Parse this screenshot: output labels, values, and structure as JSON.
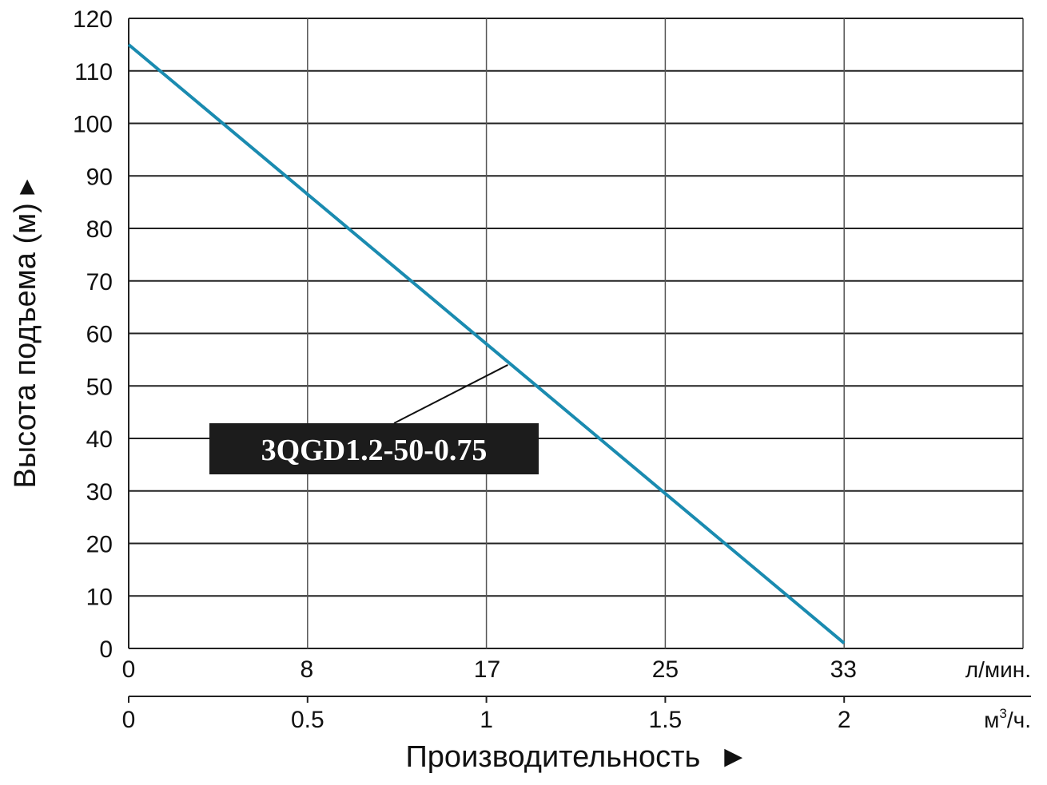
{
  "chart_data": {
    "type": "line",
    "ylabel": "Высота подъема (м)",
    "ylabel_arrow": "▸",
    "xlabel": "Производительность",
    "xlabel_arrow": "►",
    "ylim": [
      0,
      120
    ],
    "yticks": [
      0,
      10,
      20,
      30,
      40,
      50,
      60,
      70,
      80,
      90,
      100,
      110,
      120
    ],
    "grid": true,
    "x_axes": [
      {
        "unit": "л/мин.",
        "ticks": [
          {
            "value": 0,
            "label": "0"
          },
          {
            "value": 8.3,
            "label": "8"
          },
          {
            "value": 16.7,
            "label": "17"
          },
          {
            "value": 25,
            "label": "25"
          },
          {
            "value": 33.3,
            "label": "33"
          }
        ]
      },
      {
        "unit_base": "м",
        "unit_sup": "3",
        "unit_tail": "/ч.",
        "ticks": [
          {
            "value": 0,
            "label": "0"
          },
          {
            "value": 0.5,
            "label": "0.5"
          },
          {
            "value": 1,
            "label": "1"
          },
          {
            "value": 1.5,
            "label": "1.5"
          },
          {
            "value": 2,
            "label": "2"
          }
        ]
      }
    ],
    "xlim_m3h": [
      0,
      2.5
    ],
    "series": [
      {
        "name": "3QGD1.2-50-0.75",
        "color": "#1a8bb0",
        "x_m3h": [
          0,
          2
        ],
        "y": [
          115,
          1
        ]
      }
    ],
    "label_anchor": {
      "x_m3h": 1.06,
      "y": 54
    }
  }
}
